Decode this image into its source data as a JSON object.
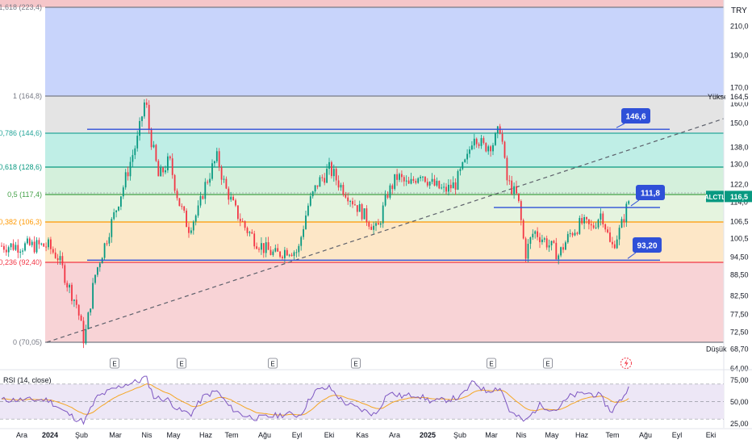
{
  "chart": {
    "currency": "TRY",
    "title": "",
    "xlabel": "",
    "ylabel": ""
  },
  "chart_data": {
    "type": "candlestick",
    "symbol": "ALCTL",
    "last_price": 116.5,
    "last_price_label": "116,5",
    "ylim": [
      64.0,
      225.0
    ],
    "y_ticks": [
      210.0,
      190.0,
      170.0,
      160.0,
      150.0,
      138.0,
      130.0,
      122.0,
      114.0,
      106.5,
      100.5,
      94.5,
      88.5,
      82.5,
      77.5,
      72.5,
      68.7,
      64.0
    ],
    "y_tick_labels": [
      "210,0",
      "190,0",
      "170,0",
      "160,0",
      "150,0",
      "138,0",
      "130,0",
      "122,0",
      "114,0",
      "106,5",
      "100,5",
      "94,50",
      "88,50",
      "82,50",
      "77,50",
      "72,50",
      "68,70",
      "64,00"
    ],
    "x_labels": [
      "Ara",
      "2024",
      "Şub",
      "Mar",
      "Nis",
      "May",
      "Haz",
      "Tem",
      "Ağu",
      "Eyl",
      "Eki",
      "Kas",
      "Ara",
      "2025",
      "Şub",
      "Mar",
      "Nis",
      "May",
      "Haz",
      "Tem",
      "Ağu",
      "Eyl",
      "Eki"
    ],
    "high_marker": {
      "label": "Yüksek",
      "value": 164.5,
      "value_label": "164,5"
    },
    "low_marker": {
      "label": "Düşük",
      "value": 68.7,
      "value_label": "68,70"
    },
    "fibonacci": [
      {
        "ratio": 1.618,
        "value": 223.4,
        "label": "1,618 (223,4)",
        "color": "#787b86",
        "band_color": "#f5c6c9"
      },
      {
        "ratio": 1.0,
        "value": 164.8,
        "label": "1 (164,8)",
        "color": "#787b86",
        "band_color": "#c8d4fb"
      },
      {
        "ratio": 0.786,
        "value": 144.6,
        "label": "0,786 (144,6)",
        "color": "#26a69a",
        "band_color": "#e4e4e4"
      },
      {
        "ratio": 0.618,
        "value": 128.6,
        "label": "0,618 (128,6)",
        "color": "#089981",
        "band_color": "#bfeee6"
      },
      {
        "ratio": 0.5,
        "value": 117.4,
        "label": "0,5 (117,4)",
        "color": "#43a047",
        "band_color": "#d4f0dc"
      },
      {
        "ratio": 0.382,
        "value": 106.3,
        "label": "0,382 (106,3)",
        "color": "#ff9800",
        "band_color": "#e5f4df"
      },
      {
        "ratio": 0.236,
        "value": 92.4,
        "label": "0,236 (92,40)",
        "color": "#f23645",
        "band_color": "#fde7c7"
      },
      {
        "ratio": 0.0,
        "value": 70.05,
        "label": "0 (70,05)",
        "color": "#787b86",
        "band_color": "#f8d3d6"
      }
    ],
    "annotations": [
      {
        "label": "146,6",
        "value": 146.6
      },
      {
        "label": "111,8",
        "value": 111.8
      },
      {
        "label": "93,20",
        "value": 93.2
      }
    ],
    "event_markers": [
      "E",
      "E",
      "E",
      "E",
      "E",
      "E"
    ],
    "price_path": [
      [
        "2023-11-20",
        98
      ],
      [
        "2023-12-01",
        94
      ],
      [
        "2023-12-10",
        86
      ],
      [
        "2023-12-20",
        80
      ],
      [
        "2023-12-28",
        70
      ],
      [
        "2024-01-08",
        88
      ],
      [
        "2024-01-20",
        100
      ],
      [
        "2024-01-31",
        112
      ],
      [
        "2024-02-10",
        125
      ],
      [
        "2024-02-22",
        142
      ],
      [
        "2024-03-01",
        163
      ],
      [
        "2024-03-05",
        146
      ],
      [
        "2024-03-15",
        124
      ],
      [
        "2024-03-26",
        132
      ],
      [
        "2024-04-05",
        114
      ],
      [
        "2024-04-15",
        104
      ],
      [
        "2024-04-25",
        110
      ],
      [
        "2024-05-03",
        122
      ],
      [
        "2024-05-15",
        133
      ],
      [
        "2024-05-24",
        120
      ],
      [
        "2024-06-04",
        110
      ],
      [
        "2024-06-14",
        104
      ],
      [
        "2024-06-24",
        100
      ],
      [
        "2024-07-04",
        97
      ],
      [
        "2024-07-16",
        95
      ],
      [
        "2024-07-28",
        97
      ],
      [
        "2024-08-08",
        96
      ],
      [
        "2024-08-18",
        112
      ],
      [
        "2024-08-28",
        122
      ],
      [
        "2024-09-10",
        128
      ],
      [
        "2024-09-22",
        121
      ],
      [
        "2024-10-05",
        114
      ],
      [
        "2024-10-18",
        108
      ],
      [
        "2024-10-30",
        103
      ],
      [
        "2024-11-10",
        118
      ],
      [
        "2024-11-20",
        125
      ],
      [
        "2024-12-02",
        121
      ],
      [
        "2024-12-14",
        127
      ],
      [
        "2024-12-26",
        122
      ],
      [
        "2025-01-08",
        119
      ],
      [
        "2025-01-20",
        122
      ],
      [
        "2025-02-01",
        132
      ],
      [
        "2025-02-08",
        145
      ],
      [
        "2025-02-18",
        138
      ],
      [
        "2025-03-01",
        140
      ],
      [
        "2025-03-08",
        148
      ],
      [
        "2025-03-14",
        124
      ],
      [
        "2025-03-26",
        116
      ],
      [
        "2025-04-03",
        95
      ],
      [
        "2025-04-12",
        103
      ],
      [
        "2025-04-26",
        99
      ],
      [
        "2025-05-08",
        95
      ],
      [
        "2025-05-20",
        102
      ],
      [
        "2025-06-01",
        106
      ],
      [
        "2025-06-12",
        104
      ],
      [
        "2025-06-22",
        110
      ],
      [
        "2025-07-02",
        97
      ],
      [
        "2025-07-12",
        104
      ],
      [
        "2025-07-22",
        116.5
      ]
    ],
    "rsi": {
      "title": "RSI (14, close)",
      "ylim": [
        20,
        80
      ],
      "levels": [
        70,
        30
      ],
      "tick_values": [
        75,
        50,
        25
      ],
      "tick_labels": [
        "75,00",
        "50,00",
        "25,00"
      ],
      "rsi_path": [
        [
          "2023-11-20",
          52
        ],
        [
          "2023-12-05",
          40
        ],
        [
          "2023-12-20",
          30
        ],
        [
          "2023-12-28",
          27
        ],
        [
          "2024-01-10",
          55
        ],
        [
          "2024-01-25",
          63
        ],
        [
          "2024-02-10",
          70
        ],
        [
          "2024-02-25",
          74
        ],
        [
          "2024-03-01",
          80
        ],
        [
          "2024-03-10",
          55
        ],
        [
          "2024-03-25",
          52
        ],
        [
          "2024-04-05",
          40
        ],
        [
          "2024-04-18",
          36
        ],
        [
          "2024-05-01",
          56
        ],
        [
          "2024-05-15",
          62
        ],
        [
          "2024-05-28",
          44
        ],
        [
          "2024-06-10",
          35
        ],
        [
          "2024-06-25",
          31
        ],
        [
          "2024-07-10",
          33
        ],
        [
          "2024-07-28",
          36
        ],
        [
          "2024-08-10",
          34
        ],
        [
          "2024-08-25",
          62
        ],
        [
          "2024-09-10",
          66
        ],
        [
          "2024-09-25",
          49
        ],
        [
          "2024-10-10",
          42
        ],
        [
          "2024-10-28",
          35
        ],
        [
          "2024-11-10",
          60
        ],
        [
          "2024-11-25",
          56
        ],
        [
          "2024-12-10",
          58
        ],
        [
          "2024-12-26",
          50
        ],
        [
          "2025-01-10",
          52
        ],
        [
          "2025-01-25",
          55
        ],
        [
          "2025-02-08",
          73
        ],
        [
          "2025-02-20",
          62
        ],
        [
          "2025-03-08",
          66
        ],
        [
          "2025-03-18",
          38
        ],
        [
          "2025-04-03",
          27
        ],
        [
          "2025-04-18",
          46
        ],
        [
          "2025-05-05",
          40
        ],
        [
          "2025-05-20",
          56
        ],
        [
          "2025-06-05",
          60
        ],
        [
          "2025-06-20",
          57
        ],
        [
          "2025-07-02",
          38
        ],
        [
          "2025-07-14",
          55
        ],
        [
          "2025-07-22",
          68
        ]
      ]
    }
  }
}
